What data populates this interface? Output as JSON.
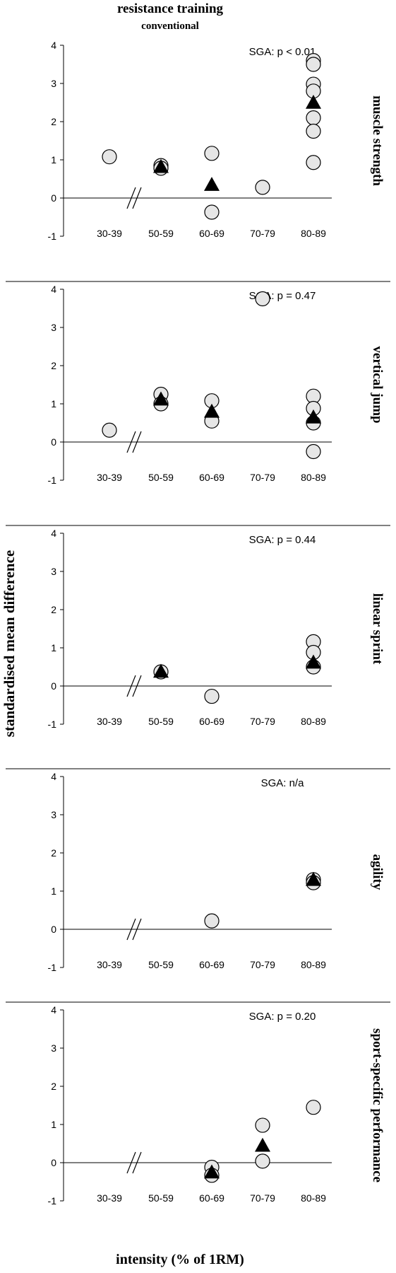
{
  "figure": {
    "title": "resistance training",
    "subtitle": "conventional",
    "ylabel": "standardised mean difference",
    "xlabel": "intensity (% of 1RM)"
  },
  "colors": {
    "marker_fill": "#e6e6e6",
    "marker_stroke": "#000000",
    "triangle_fill": "#000000",
    "axis": "#000000"
  },
  "chart_data": [
    {
      "type": "scatter",
      "title": "muscle strength",
      "annotation": "SGA: p < 0.01",
      "categories": [
        "30-39",
        "50-59",
        "60-69",
        "70-79",
        "80-89"
      ],
      "ylim": [
        -1,
        4
      ],
      "yticks": [
        -1,
        0,
        1,
        2,
        3,
        4
      ],
      "axis_break": true,
      "series": [
        {
          "marker": "circle",
          "points": [
            [
              "30-39",
              1.08
            ],
            [
              "50-59",
              0.85
            ],
            [
              "50-59",
              0.78
            ],
            [
              "60-69",
              1.17
            ],
            [
              "60-69",
              -0.37
            ],
            [
              "70-79",
              0.28
            ],
            [
              "80-89",
              3.6
            ],
            [
              "80-89",
              3.5
            ],
            [
              "80-89",
              2.98
            ],
            [
              "80-89",
              2.8
            ],
            [
              "80-89",
              2.1
            ],
            [
              "80-89",
              1.75
            ],
            [
              "80-89",
              0.93
            ]
          ]
        },
        {
          "marker": "triangle",
          "points": [
            [
              "50-59",
              0.82
            ],
            [
              "60-69",
              0.35
            ],
            [
              "80-89",
              2.5
            ]
          ]
        }
      ]
    },
    {
      "type": "scatter",
      "title": "vertical jump",
      "annotation": "SGA: p = 0.47",
      "categories": [
        "30-39",
        "50-59",
        "60-69",
        "70-79",
        "80-89"
      ],
      "ylim": [
        -1,
        4
      ],
      "yticks": [
        -1,
        0,
        1,
        2,
        3,
        4
      ],
      "axis_break": true,
      "series": [
        {
          "marker": "circle",
          "points": [
            [
              "30-39",
              0.31
            ],
            [
              "50-59",
              1.25
            ],
            [
              "50-59",
              1.0
            ],
            [
              "60-69",
              1.08
            ],
            [
              "60-69",
              0.55
            ],
            [
              "70-79",
              3.75
            ],
            [
              "80-89",
              1.2
            ],
            [
              "80-89",
              0.88
            ],
            [
              "80-89",
              0.5
            ],
            [
              "80-89",
              -0.25
            ]
          ]
        },
        {
          "marker": "triangle",
          "points": [
            [
              "50-59",
              1.12
            ],
            [
              "60-69",
              0.8
            ],
            [
              "80-89",
              0.65
            ]
          ]
        }
      ]
    },
    {
      "type": "scatter",
      "title": "linear sprint",
      "annotation": "SGA: p = 0.44",
      "categories": [
        "30-39",
        "50-59",
        "60-69",
        "70-79",
        "80-89"
      ],
      "ylim": [
        -1,
        4
      ],
      "yticks": [
        -1,
        0,
        1,
        2,
        3,
        4
      ],
      "axis_break": true,
      "series": [
        {
          "marker": "circle",
          "points": [
            [
              "50-59",
              0.37
            ],
            [
              "60-69",
              -0.27
            ],
            [
              "80-89",
              1.16
            ],
            [
              "80-89",
              0.88
            ],
            [
              "80-89",
              0.5
            ]
          ]
        },
        {
          "marker": "triangle",
          "points": [
            [
              "50-59",
              0.38
            ],
            [
              "80-89",
              0.62
            ]
          ]
        }
      ]
    },
    {
      "type": "scatter",
      "title": "agility",
      "annotation": "SGA: n/a",
      "categories": [
        "30-39",
        "50-59",
        "60-69",
        "70-79",
        "80-89"
      ],
      "ylim": [
        -1,
        4
      ],
      "yticks": [
        -1,
        0,
        1,
        2,
        3,
        4
      ],
      "axis_break": true,
      "series": [
        {
          "marker": "circle",
          "points": [
            [
              "60-69",
              0.22
            ],
            [
              "80-89",
              1.3
            ],
            [
              "80-89",
              1.22
            ]
          ]
        },
        {
          "marker": "triangle",
          "points": [
            [
              "80-89",
              1.3
            ]
          ]
        }
      ]
    },
    {
      "type": "scatter",
      "title": "sport-specific performance",
      "annotation": "SGA: p = 0.20",
      "categories": [
        "30-39",
        "50-59",
        "60-69",
        "70-79",
        "80-89"
      ],
      "ylim": [
        -1,
        4
      ],
      "yticks": [
        -1,
        0,
        1,
        2,
        3,
        4
      ],
      "axis_break": true,
      "series": [
        {
          "marker": "circle",
          "points": [
            [
              "60-69",
              -0.12
            ],
            [
              "60-69",
              -0.33
            ],
            [
              "70-79",
              0.98
            ],
            [
              "70-79",
              0.04
            ],
            [
              "80-89",
              1.45
            ]
          ]
        },
        {
          "marker": "triangle",
          "points": [
            [
              "60-69",
              -0.25
            ],
            [
              "70-79",
              0.45
            ]
          ]
        }
      ]
    }
  ]
}
